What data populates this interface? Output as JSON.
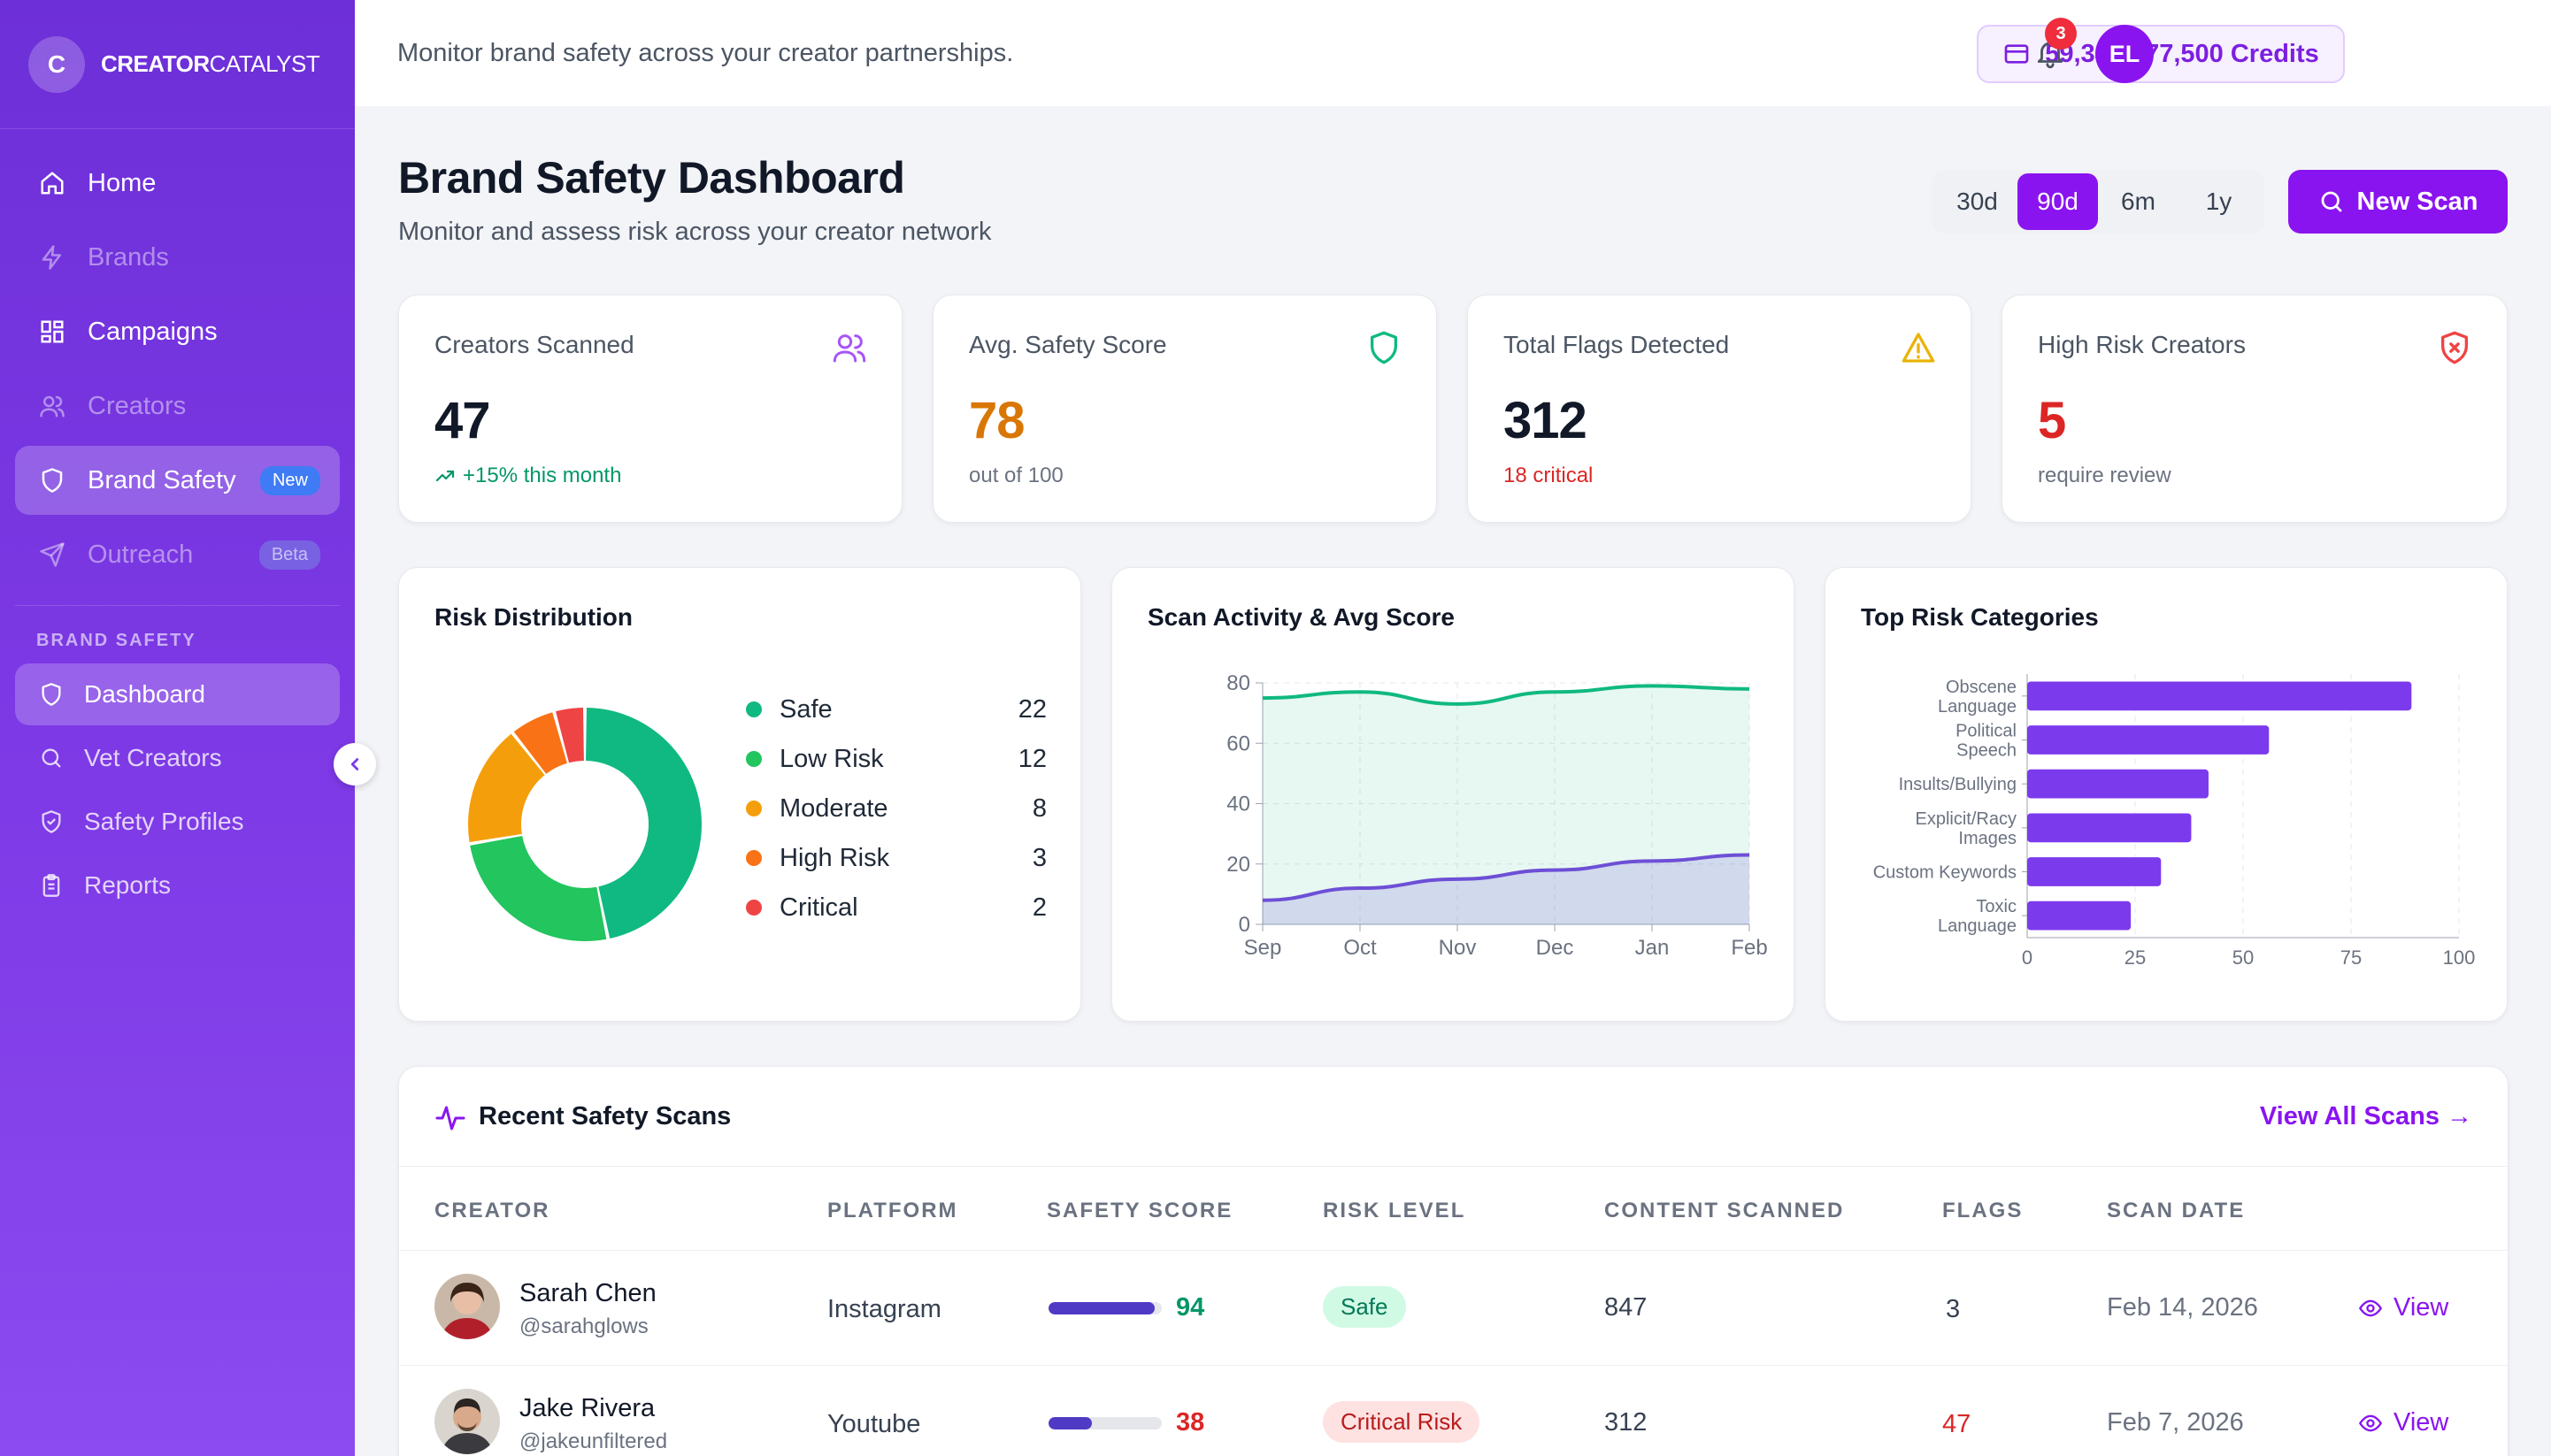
{
  "brand": {
    "logo_letter": "C",
    "name_bold": "CREATOR",
    "name_light": "CATALYST"
  },
  "sidebar": {
    "items": [
      {
        "label": "Home",
        "icon": "home-icon",
        "dim": false,
        "active": false
      },
      {
        "label": "Brands",
        "icon": "bolt-icon",
        "dim": true,
        "active": false
      },
      {
        "label": "Campaigns",
        "icon": "grid-icon",
        "dim": false,
        "active": false
      },
      {
        "label": "Creators",
        "icon": "users-icon",
        "dim": true,
        "active": false
      },
      {
        "label": "Brand Safety",
        "icon": "shield-icon",
        "dim": false,
        "active": true,
        "badge": "New"
      },
      {
        "label": "Outreach",
        "icon": "send-icon",
        "dim": true,
        "active": false,
        "badge": "Beta"
      }
    ],
    "section_label": "BRAND SAFETY",
    "sub_items": [
      {
        "label": "Dashboard",
        "icon": "shield-icon",
        "active": true
      },
      {
        "label": "Vet Creators",
        "icon": "search-icon",
        "active": false
      },
      {
        "label": "Safety Profiles",
        "icon": "shield-check-icon",
        "active": false
      },
      {
        "label": "Reports",
        "icon": "clipboard-icon",
        "active": false
      }
    ]
  },
  "topbar": {
    "message": "Monitor brand safety across your creator partnerships.",
    "credits": "59,348 / 77,500 Credits",
    "notifications": "3",
    "avatar_initials": "EL"
  },
  "header": {
    "title": "Brand Safety Dashboard",
    "subtitle": "Monitor and assess risk across your creator network",
    "ranges": [
      "30d",
      "90d",
      "6m",
      "1y"
    ],
    "active_range": "90d",
    "new_scan_label": "New Scan"
  },
  "stats": [
    {
      "label": "Creators Scanned",
      "value": "47",
      "note": "+15% this month",
      "value_color": "#111827",
      "note_color": "#059669",
      "icon": "users-icon"
    },
    {
      "label": "Avg. Safety Score",
      "value": "78",
      "note": "out of 100",
      "value_color": "#d97706",
      "note_color": "#6b7280",
      "icon": "shield-icon"
    },
    {
      "label": "Total Flags Detected",
      "value": "312",
      "note": "18 critical",
      "value_color": "#111827",
      "note_color": "#dc2626",
      "icon": "warning-icon"
    },
    {
      "label": "High Risk Creators",
      "value": "5",
      "note": "require review",
      "value_color": "#dc2626",
      "note_color": "#6b7280",
      "icon": "shield-x-icon"
    }
  ],
  "risk_distribution": {
    "title": "Risk Distribution",
    "items": [
      {
        "label": "Safe",
        "value": 22,
        "color": "#10b981"
      },
      {
        "label": "Low Risk",
        "value": 12,
        "color": "#22c55e"
      },
      {
        "label": "Moderate",
        "value": 8,
        "color": "#f59e0b"
      },
      {
        "label": "High Risk",
        "value": 3,
        "color": "#f97316"
      },
      {
        "label": "Critical",
        "value": 2,
        "color": "#ef4444"
      }
    ]
  },
  "chart_data": [
    {
      "type": "pie",
      "title": "Risk Distribution",
      "categories": [
        "Safe",
        "Low Risk",
        "Moderate",
        "High Risk",
        "Critical"
      ],
      "values": [
        22,
        12,
        8,
        3,
        2
      ]
    },
    {
      "type": "area",
      "title": "Scan Activity & Avg Score",
      "x": [
        "Sep",
        "Oct",
        "Nov",
        "Dec",
        "Jan",
        "Feb"
      ],
      "ylim": [
        0,
        80
      ],
      "yticks": [
        0,
        20,
        40,
        60,
        80
      ],
      "series": [
        {
          "values": [
            75,
            77,
            73,
            77,
            79,
            78
          ],
          "color": "#10b981"
        },
        {
          "values": [
            8,
            12,
            15,
            18,
            21,
            23
          ],
          "color": "#6d4fd6"
        }
      ],
      "grid": true
    },
    {
      "type": "bar",
      "orientation": "horizontal",
      "title": "Top Risk Categories",
      "categories": [
        "Obscene Language",
        "Political Speech",
        "Insults/Bullying",
        "Explicit/Racy Images",
        "Custom Keywords",
        "Toxic Language"
      ],
      "values": [
        89,
        56,
        42,
        38,
        31,
        24
      ],
      "xlim": [
        0,
        100
      ],
      "xticks": [
        0,
        25,
        50,
        75,
        100
      ],
      "color": "#7c3aed",
      "grid": true
    }
  ],
  "table": {
    "title": "Recent Safety Scans",
    "view_all": "View All Scans →",
    "headers": [
      "CREATOR",
      "PLATFORM",
      "SAFETY SCORE",
      "RISK LEVEL",
      "CONTENT SCANNED",
      "FLAGS",
      "SCAN DATE"
    ],
    "rows": [
      {
        "name": "Sarah Chen",
        "handle": "@sarahglows",
        "platform": "Instagram",
        "score": "94",
        "score_color": "#059669",
        "risk": "Safe",
        "risk_bg": "#d1fae5",
        "risk_color": "#047857",
        "content": "847",
        "flags": "3",
        "flags_color": "#374151",
        "date": "Feb 14, 2026",
        "action": "View"
      },
      {
        "name": "Jake Rivera",
        "handle": "@jakeunfiltered",
        "platform": "Youtube",
        "score": "38",
        "score_color": "#dc2626",
        "risk": "Critical Risk",
        "risk_bg": "#fee2e2",
        "risk_color": "#b91c1c",
        "content": "312",
        "flags": "47",
        "flags_color": "#dc2626",
        "date": "Feb 7, 2026",
        "action": "View"
      }
    ]
  }
}
